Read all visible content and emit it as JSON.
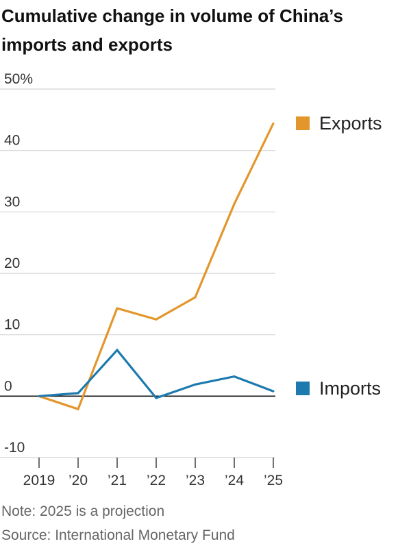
{
  "chart_data": {
    "type": "line",
    "title": "Cumulative change in volume of China’s imports and exports",
    "categories": [
      "2019",
      "’20",
      "’21",
      "’22",
      "’23",
      "’24",
      "’25"
    ],
    "y_tick_labels": [
      "50%",
      "40",
      "30",
      "20",
      "10",
      "0",
      "-10"
    ],
    "y_tick_values": [
      50,
      40,
      30,
      20,
      10,
      0,
      -10
    ],
    "ylim": [
      -10,
      50
    ],
    "grid": true,
    "series": [
      {
        "name": "Exports",
        "color": "#E3962B",
        "values": [
          0,
          -2.1,
          14.3,
          12.5,
          16.1,
          31.3,
          44.4
        ]
      },
      {
        "name": "Imports",
        "color": "#1C7AAF",
        "values": [
          0,
          0.5,
          7.5,
          -0.3,
          1.9,
          3.2,
          0.8
        ]
      }
    ]
  },
  "footer": {
    "note": "Note: 2025 is a projection",
    "source": "Source: International Monetary Fund"
  }
}
